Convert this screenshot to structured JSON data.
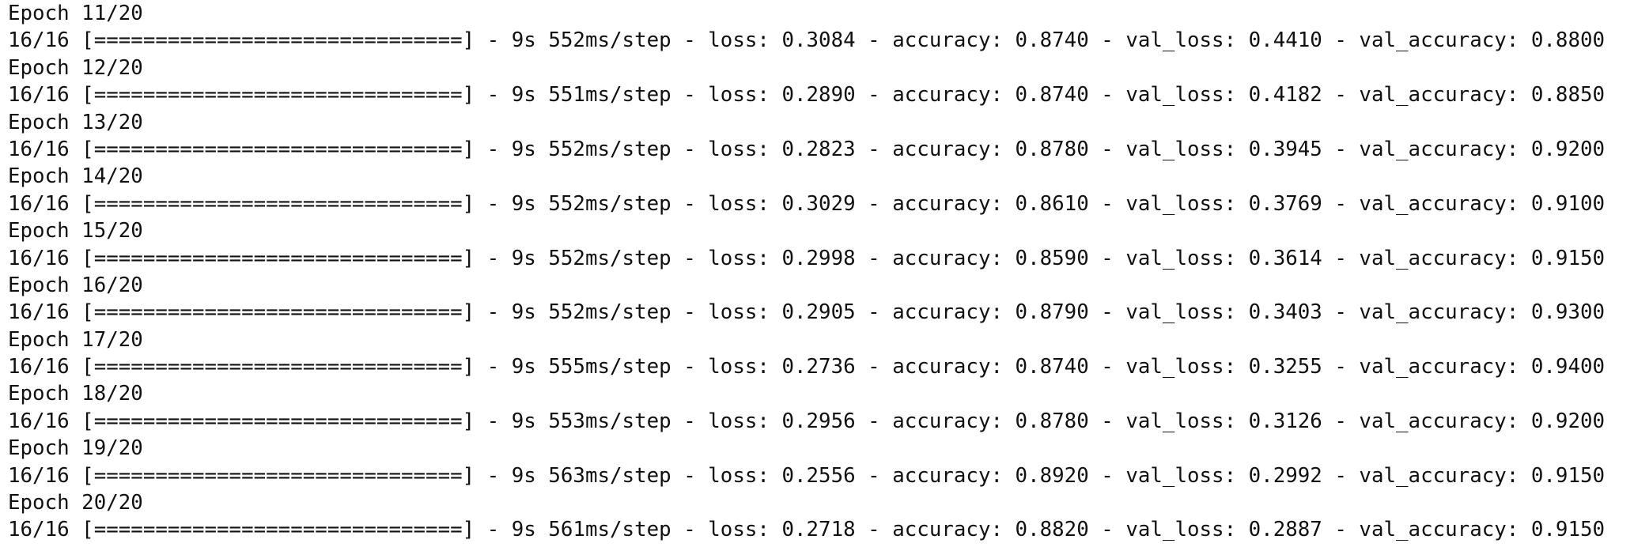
{
  "epochs": [
    {
      "header": "Epoch 11/20",
      "progress": "16/16 [==============================] - 9s 552ms/step - loss: 0.3084 - accuracy: 0.8740 - val_loss: 0.4410 - val_accuracy: 0.8800"
    },
    {
      "header": "Epoch 12/20",
      "progress": "16/16 [==============================] - 9s 551ms/step - loss: 0.2890 - accuracy: 0.8740 - val_loss: 0.4182 - val_accuracy: 0.8850"
    },
    {
      "header": "Epoch 13/20",
      "progress": "16/16 [==============================] - 9s 552ms/step - loss: 0.2823 - accuracy: 0.8780 - val_loss: 0.3945 - val_accuracy: 0.9200"
    },
    {
      "header": "Epoch 14/20",
      "progress": "16/16 [==============================] - 9s 552ms/step - loss: 0.3029 - accuracy: 0.8610 - val_loss: 0.3769 - val_accuracy: 0.9100"
    },
    {
      "header": "Epoch 15/20",
      "progress": "16/16 [==============================] - 9s 552ms/step - loss: 0.2998 - accuracy: 0.8590 - val_loss: 0.3614 - val_accuracy: 0.9150"
    },
    {
      "header": "Epoch 16/20",
      "progress": "16/16 [==============================] - 9s 552ms/step - loss: 0.2905 - accuracy: 0.8790 - val_loss: 0.3403 - val_accuracy: 0.9300"
    },
    {
      "header": "Epoch 17/20",
      "progress": "16/16 [==============================] - 9s 555ms/step - loss: 0.2736 - accuracy: 0.8740 - val_loss: 0.3255 - val_accuracy: 0.9400"
    },
    {
      "header": "Epoch 18/20",
      "progress": "16/16 [==============================] - 9s 553ms/step - loss: 0.2956 - accuracy: 0.8780 - val_loss: 0.3126 - val_accuracy: 0.9200"
    },
    {
      "header": "Epoch 19/20",
      "progress": "16/16 [==============================] - 9s 563ms/step - loss: 0.2556 - accuracy: 0.8920 - val_loss: 0.2992 - val_accuracy: 0.9150"
    },
    {
      "header": "Epoch 20/20",
      "progress": "16/16 [==============================] - 9s 561ms/step - loss: 0.2718 - accuracy: 0.8820 - val_loss: 0.2887 - val_accuracy: 0.9150"
    }
  ]
}
